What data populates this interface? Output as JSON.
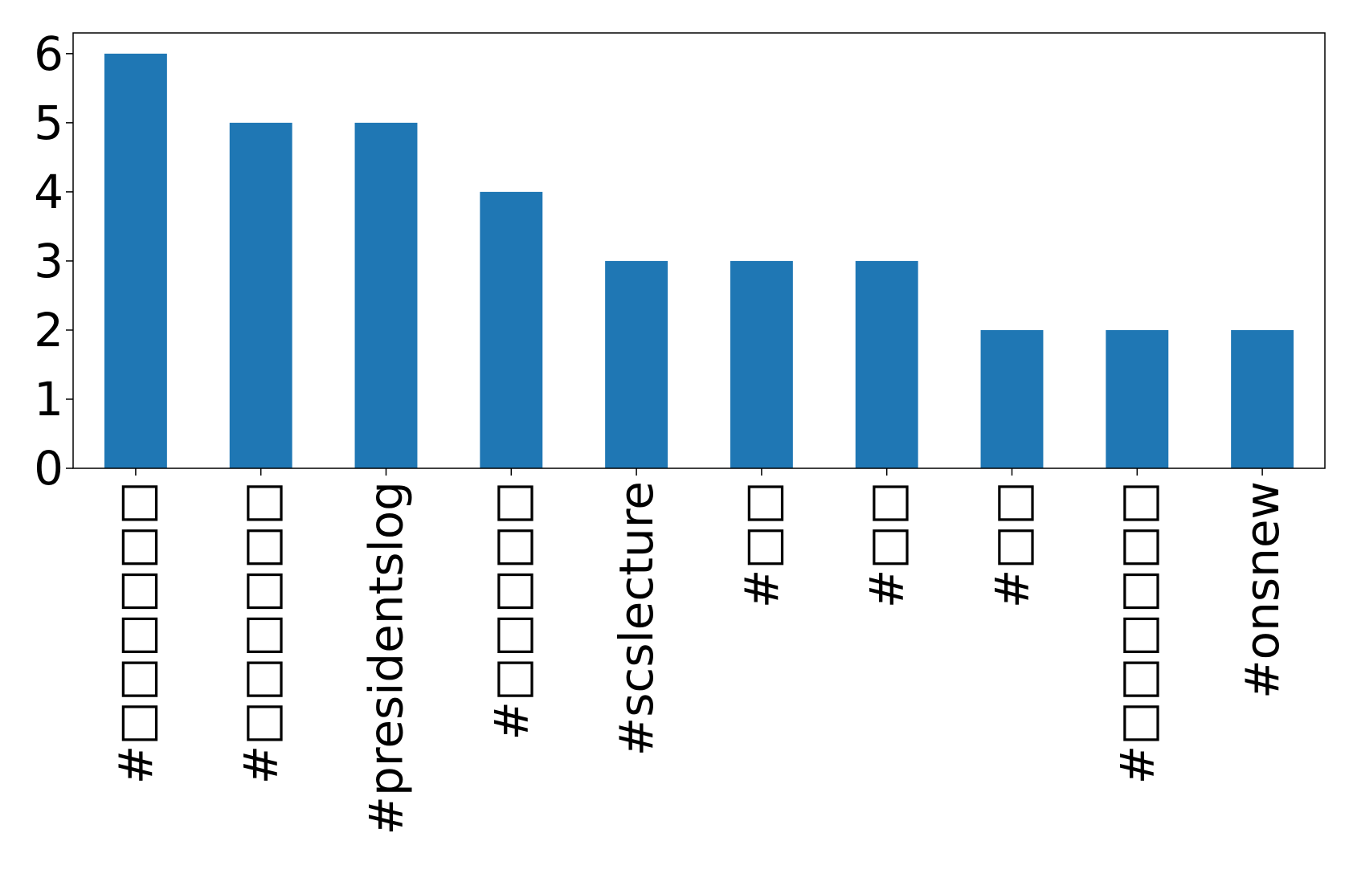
{
  "chart_data": {
    "type": "bar",
    "categories": [
      "#□□□□□□",
      "#□□□□□□",
      "#presidentslog",
      "#□□□□□",
      "#scslecture",
      "#□□",
      "#□□",
      "#□□",
      "#□□□□□□",
      "#onsnew"
    ],
    "values": [
      6,
      5,
      5,
      4,
      3,
      3,
      3,
      2,
      2,
      2
    ],
    "title": "",
    "xlabel": "",
    "ylabel": "",
    "ylim": [
      0,
      6.3
    ],
    "yticks": [
      0,
      1,
      2,
      3,
      4,
      5,
      6
    ],
    "grid": false,
    "legend": "none",
    "bar_color": "#1f77b4"
  }
}
